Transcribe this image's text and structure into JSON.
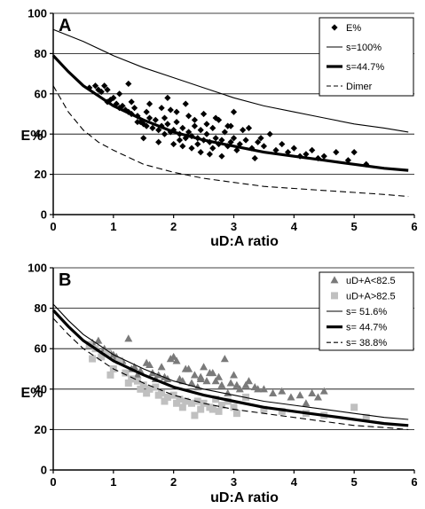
{
  "chart_data": [
    {
      "type": "scatter",
      "panel_label": "A",
      "xlabel": "uD:A ratio",
      "ylabel": "E%",
      "xlim": [
        0,
        6
      ],
      "ylim": [
        0,
        100
      ],
      "xticks": [
        "0",
        "1",
        "2",
        "3",
        "4",
        "5",
        "6"
      ],
      "yticks": [
        "0",
        "20",
        "40",
        "60",
        "80",
        "100"
      ],
      "grid": "horizontal",
      "legend_position": "top-right",
      "series": [
        {
          "name": "E%",
          "kind": "points",
          "marker": "diamond",
          "color": "#000000",
          "x": [
            0.6,
            0.7,
            0.75,
            0.8,
            0.85,
            0.9,
            0.95,
            1.0,
            1.05,
            1.1,
            1.15,
            1.2,
            1.25,
            1.3,
            1.35,
            1.4,
            1.45,
            1.5,
            1.55,
            1.6,
            1.65,
            1.7,
            1.75,
            1.8,
            1.85,
            1.9,
            1.95,
            2.0,
            2.05,
            2.1,
            2.15,
            2.2,
            2.25,
            2.3,
            2.35,
            2.4,
            2.45,
            2.5,
            2.55,
            2.6,
            2.65,
            2.7,
            2.75,
            2.8,
            2.85,
            2.9,
            2.95,
            3.0,
            3.1,
            3.2,
            3.3,
            3.4,
            3.5,
            3.6,
            3.7,
            3.8,
            3.9,
            4.0,
            4.1,
            4.2,
            4.3,
            4.4,
            4.5,
            4.7,
            4.9,
            5.0,
            5.2,
            1.25,
            1.6,
            1.9,
            2.05,
            2.2,
            2.35,
            2.5,
            2.7,
            2.9,
            3.0,
            1.5,
            1.75,
            2.0,
            2.15,
            2.3,
            2.45,
            2.6,
            2.8,
            3.05,
            3.35,
            1.1,
            1.4,
            1.85,
            2.1,
            2.4,
            2.65,
            3.15,
            3.45,
            1.95,
            2.25,
            2.55,
            2.75,
            2.95,
            3.25,
            0.9,
            1.3,
            1.55,
            1.8
          ],
          "y": [
            63,
            64,
            62,
            61,
            64,
            56,
            57,
            58,
            55,
            53,
            54,
            52,
            51,
            50,
            53,
            49,
            46,
            45,
            44,
            48,
            43,
            47,
            42,
            44,
            40,
            45,
            41,
            42,
            46,
            40,
            43,
            38,
            41,
            39,
            44,
            38,
            42,
            37,
            40,
            36,
            43,
            38,
            35,
            37,
            41,
            34,
            36,
            38,
            35,
            37,
            33,
            36,
            34,
            40,
            32,
            35,
            31,
            33,
            29,
            30,
            32,
            28,
            29,
            31,
            27,
            31,
            25,
            65,
            55,
            58,
            51,
            55,
            47,
            50,
            48,
            44,
            51,
            38,
            36,
            35,
            34,
            33,
            31,
            30,
            29,
            32,
            28,
            60,
            46,
            48,
            37,
            35,
            33,
            42,
            38,
            52,
            49,
            45,
            47,
            44,
            43,
            62,
            56,
            51,
            53
          ]
        },
        {
          "name": "s=100%",
          "kind": "curve",
          "style": "thin",
          "x": [
            0,
            0.5,
            1,
            1.5,
            2,
            2.5,
            3,
            3.5,
            4,
            4.5,
            5,
            5.5,
            5.9
          ],
          "y": [
            92,
            86,
            79,
            73,
            68,
            63,
            58,
            54,
            51,
            48,
            45,
            43,
            41
          ]
        },
        {
          "name": "s=44.7%",
          "kind": "curve",
          "style": "thick",
          "x": [
            0,
            0.25,
            0.5,
            0.75,
            1,
            1.5,
            2,
            2.5,
            3,
            3.5,
            4,
            4.5,
            5,
            5.5,
            5.9
          ],
          "y": [
            79,
            71,
            64,
            59,
            54,
            47,
            41,
            37,
            34,
            31,
            29,
            27,
            25,
            23,
            22
          ]
        },
        {
          "name": "Dimer",
          "kind": "curve",
          "style": "dashed",
          "x": [
            0,
            0.25,
            0.5,
            0.75,
            1,
            1.5,
            2,
            2.5,
            3,
            3.5,
            4,
            4.5,
            5,
            5.5,
            5.9
          ],
          "y": [
            64,
            51,
            42,
            36,
            32,
            25,
            21,
            18,
            16,
            14,
            13,
            12,
            11,
            10,
            9
          ]
        }
      ]
    },
    {
      "type": "scatter",
      "panel_label": "B",
      "xlabel": "uD:A ratio",
      "ylabel": "E%",
      "xlim": [
        0,
        6
      ],
      "ylim": [
        0,
        100
      ],
      "xticks": [
        "0",
        "1",
        "2",
        "3",
        "4",
        "5",
        "6"
      ],
      "yticks": [
        "0",
        "20",
        "40",
        "60",
        "80",
        "100"
      ],
      "grid": "horizontal",
      "legend_position": "top-right",
      "series": [
        {
          "name": "uD+A<82.5",
          "kind": "points",
          "marker": "triangle",
          "color": "#7a7a7a",
          "x": [
            0.65,
            0.75,
            0.85,
            0.95,
            1.05,
            1.15,
            1.25,
            1.35,
            1.45,
            1.55,
            1.65,
            1.75,
            1.85,
            1.95,
            2.05,
            2.15,
            2.25,
            2.35,
            2.45,
            2.55,
            2.65,
            2.75,
            2.85,
            2.95,
            3.05,
            3.2,
            3.35,
            3.5,
            3.65,
            3.8,
            3.95,
            4.1,
            4.3,
            4.5,
            1.3,
            1.6,
            1.9,
            2.0,
            2.1,
            2.3,
            2.5,
            2.6,
            2.8,
            3.0,
            3.1,
            1.4,
            1.7,
            2.2,
            2.4,
            2.7,
            2.9,
            3.4,
            4.2,
            4.4,
            1.0,
            1.8,
            2.45,
            3.25
          ],
          "y": [
            63,
            64,
            60,
            58,
            56,
            54,
            65,
            51,
            49,
            53,
            48,
            47,
            46,
            55,
            54,
            44,
            50,
            47,
            45,
            44,
            48,
            46,
            55,
            43,
            42,
            42,
            41,
            40,
            38,
            39,
            36,
            37,
            38,
            39,
            50,
            52,
            45,
            56,
            45,
            43,
            51,
            48,
            42,
            47,
            40,
            47,
            45,
            50,
            41,
            44,
            38,
            40,
            33,
            36,
            57,
            51,
            46,
            44
          ]
        },
        {
          "name": "uD+A>82.5",
          "kind": "points",
          "marker": "square",
          "color": "#c0c0c0",
          "x": [
            0.6,
            0.7,
            0.8,
            0.9,
            1.0,
            1.1,
            1.2,
            1.3,
            1.4,
            1.5,
            1.6,
            1.7,
            1.8,
            1.9,
            2.0,
            2.1,
            2.2,
            2.3,
            2.4,
            2.5,
            2.6,
            2.7,
            2.8,
            2.9,
            3.0,
            3.2,
            3.5,
            3.8,
            4.2,
            4.5,
            5.0,
            5.2,
            0.65,
            0.95,
            1.25,
            1.55,
            1.85,
            2.15,
            2.45,
            2.75,
            3.05,
            1.45,
            1.75,
            2.05,
            2.35,
            2.65
          ],
          "y": [
            62,
            60,
            56,
            58,
            50,
            54,
            48,
            45,
            44,
            42,
            40,
            41,
            38,
            36,
            37,
            35,
            34,
            33,
            34,
            33,
            31,
            35,
            32,
            34,
            31,
            36,
            30,
            29,
            28,
            27,
            31,
            26,
            55,
            47,
            43,
            38,
            34,
            31,
            30,
            29,
            28,
            40,
            37,
            33,
            27,
            30
          ]
        },
        {
          "name": "s= 51.6%",
          "kind": "curve",
          "style": "thin",
          "x": [
            0,
            0.25,
            0.5,
            0.75,
            1,
            1.5,
            2,
            2.5,
            3,
            3.5,
            4,
            4.5,
            5,
            5.5,
            5.9
          ],
          "y": [
            82,
            74,
            67,
            62,
            57,
            50,
            44,
            40,
            37,
            34,
            32,
            30,
            28,
            26,
            25
          ]
        },
        {
          "name": "s= 44.7%",
          "kind": "curve",
          "style": "thick",
          "x": [
            0,
            0.25,
            0.5,
            0.75,
            1,
            1.5,
            2,
            2.5,
            3,
            3.5,
            4,
            4.5,
            5,
            5.5,
            5.9
          ],
          "y": [
            79,
            71,
            64,
            59,
            54,
            47,
            41,
            37,
            34,
            31,
            29,
            27,
            25,
            23,
            22
          ]
        },
        {
          "name": "s= 38.8%",
          "kind": "curve",
          "style": "dashed",
          "x": [
            0,
            0.25,
            0.5,
            0.75,
            1,
            1.5,
            2,
            2.5,
            3,
            3.5,
            4,
            4.5,
            5,
            5.5,
            5.9
          ],
          "y": [
            75,
            67,
            60,
            55,
            50,
            43,
            37,
            33,
            30,
            28,
            26,
            24,
            22,
            21,
            20
          ]
        }
      ]
    }
  ]
}
